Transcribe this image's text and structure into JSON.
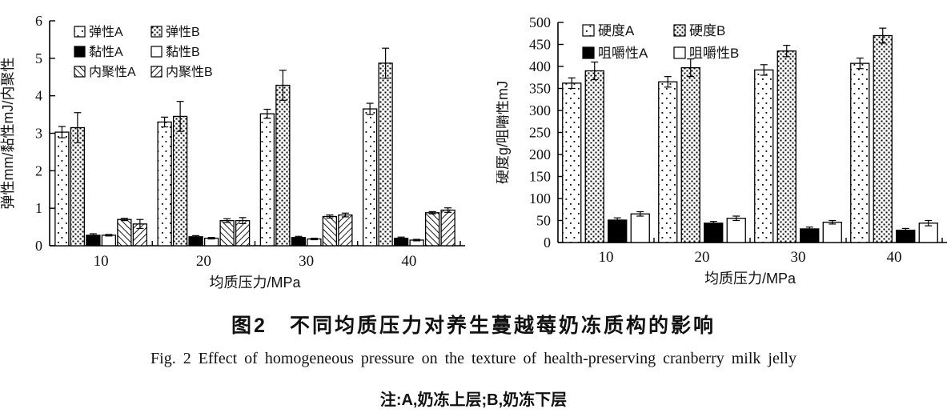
{
  "figure": {
    "caption_zh": "图2　不同均质压力对养生蔓越莓奶冻质构的影响",
    "caption_en": "Fig. 2  Effect of homogeneous pressure on the texture of health-preserving cranberry milk jelly",
    "note": "注:A,奶冻上层;B,奶冻下层"
  },
  "colors": {
    "axis": "#000000",
    "text": "#111111",
    "bar_fill_black": "#000000",
    "bar_fill_white": "#ffffff"
  },
  "chart_data": [
    {
      "type": "bar",
      "title": "",
      "xlabel": "均质压力/MPa",
      "ylabel": "弹性mm/黏性mJ/内聚性",
      "categories": [
        "10",
        "20",
        "30",
        "40"
      ],
      "ylim": [
        0,
        6
      ],
      "yticks": [
        0,
        1,
        2,
        3,
        4,
        5,
        6
      ],
      "grid": false,
      "error_bars": true,
      "legend_position": "inside-top-left",
      "legend_cols": 2,
      "series": [
        {
          "name": "弹性A",
          "pattern": "dots-sparse",
          "values": [
            3.03,
            3.3,
            3.52,
            3.65
          ],
          "errors": [
            0.15,
            0.13,
            0.12,
            0.15
          ]
        },
        {
          "name": "弹性B",
          "pattern": "dots-dense",
          "values": [
            3.15,
            3.45,
            4.28,
            4.87
          ],
          "errors": [
            0.4,
            0.4,
            0.4,
            0.4
          ]
        },
        {
          "name": "黏性A",
          "pattern": "solid-black",
          "values": [
            0.28,
            0.24,
            0.22,
            0.2
          ],
          "errors": [
            0.04,
            0.03,
            0.03,
            0.03
          ]
        },
        {
          "name": "黏性B",
          "pattern": "plain-white",
          "values": [
            0.28,
            0.2,
            0.18,
            0.15
          ],
          "errors": [
            0.02,
            0.02,
            0.02,
            0.02
          ]
        },
        {
          "name": "内聚性A",
          "pattern": "hatch-backslash",
          "values": [
            0.7,
            0.67,
            0.78,
            0.88
          ],
          "errors": [
            0.03,
            0.05,
            0.04,
            0.03
          ]
        },
        {
          "name": "内聚性B",
          "pattern": "hatch-slash",
          "values": [
            0.58,
            0.67,
            0.82,
            0.95
          ],
          "errors": [
            0.12,
            0.08,
            0.05,
            0.06
          ]
        }
      ]
    },
    {
      "type": "bar",
      "title": "",
      "xlabel": "均质压力/MPa",
      "ylabel": "硬度g/咀嚼性mJ",
      "categories": [
        "10",
        "20",
        "30",
        "40"
      ],
      "ylim": [
        0,
        500
      ],
      "yticks": [
        0,
        50,
        100,
        150,
        200,
        250,
        300,
        350,
        400,
        450,
        500
      ],
      "grid": false,
      "error_bars": true,
      "legend_position": "inside-top-left",
      "legend_cols": 2,
      "series": [
        {
          "name": "硬度A",
          "pattern": "dots-sparse",
          "values": [
            362,
            365,
            392,
            407
          ],
          "errors": [
            12,
            12,
            12,
            12
          ]
        },
        {
          "name": "硬度B",
          "pattern": "dots-dense",
          "values": [
            390,
            397,
            435,
            470
          ],
          "errors": [
            20,
            20,
            13,
            17
          ]
        },
        {
          "name": "咀嚼性A",
          "pattern": "solid-black",
          "values": [
            51,
            44,
            31,
            28
          ],
          "errors": [
            5,
            4,
            4,
            4
          ]
        },
        {
          "name": "咀嚼性B",
          "pattern": "plain-white",
          "values": [
            65,
            55,
            46,
            44
          ],
          "errors": [
            5,
            5,
            4,
            6
          ]
        }
      ]
    }
  ]
}
